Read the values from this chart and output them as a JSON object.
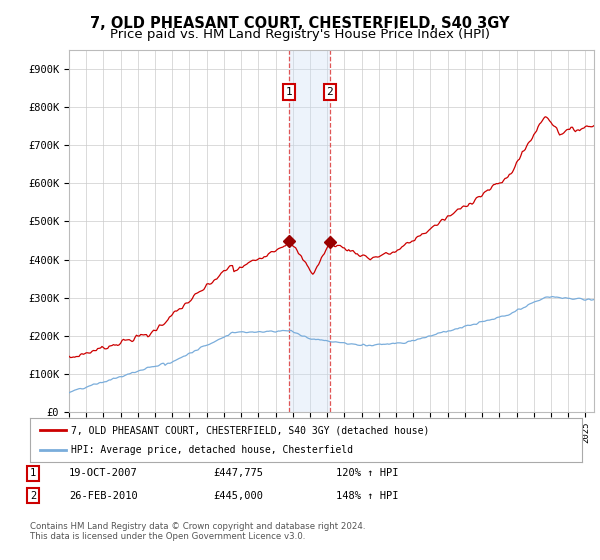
{
  "title": "7, OLD PHEASANT COURT, CHESTERFIELD, S40 3GY",
  "subtitle": "Price paid vs. HM Land Registry's House Price Index (HPI)",
  "xlim_start": 1995.0,
  "xlim_end": 2025.5,
  "ylim": [
    0,
    950000
  ],
  "yticks": [
    0,
    100000,
    200000,
    300000,
    400000,
    500000,
    600000,
    700000,
    800000,
    900000
  ],
  "ytick_labels": [
    "£0",
    "£100K",
    "£200K",
    "£300K",
    "£400K",
    "£500K",
    "£600K",
    "£700K",
    "£800K",
    "£900K"
  ],
  "sale1_date": 2007.8,
  "sale1_price": 447775,
  "sale1_label": "1",
  "sale1_date_str": "19-OCT-2007",
  "sale1_price_str": "£447,775",
  "sale1_hpi": "120% ↑ HPI",
  "sale2_date": 2010.15,
  "sale2_price": 445000,
  "sale2_label": "2",
  "sale2_date_str": "26-FEB-2010",
  "sale2_price_str": "£445,000",
  "sale2_hpi": "148% ↑ HPI",
  "red_line_color": "#cc0000",
  "blue_line_color": "#7aaddb",
  "grid_color": "#cccccc",
  "background_color": "#ffffff",
  "shade_color": "#ccdff5",
  "dashed_line_color": "#dd4444",
  "legend_line1": "7, OLD PHEASANT COURT, CHESTERFIELD, S40 3GY (detached house)",
  "legend_line2": "HPI: Average price, detached house, Chesterfield",
  "footnote": "Contains HM Land Registry data © Crown copyright and database right 2024.\nThis data is licensed under the Open Government Licence v3.0.",
  "title_fontsize": 10.5,
  "subtitle_fontsize": 9.5
}
